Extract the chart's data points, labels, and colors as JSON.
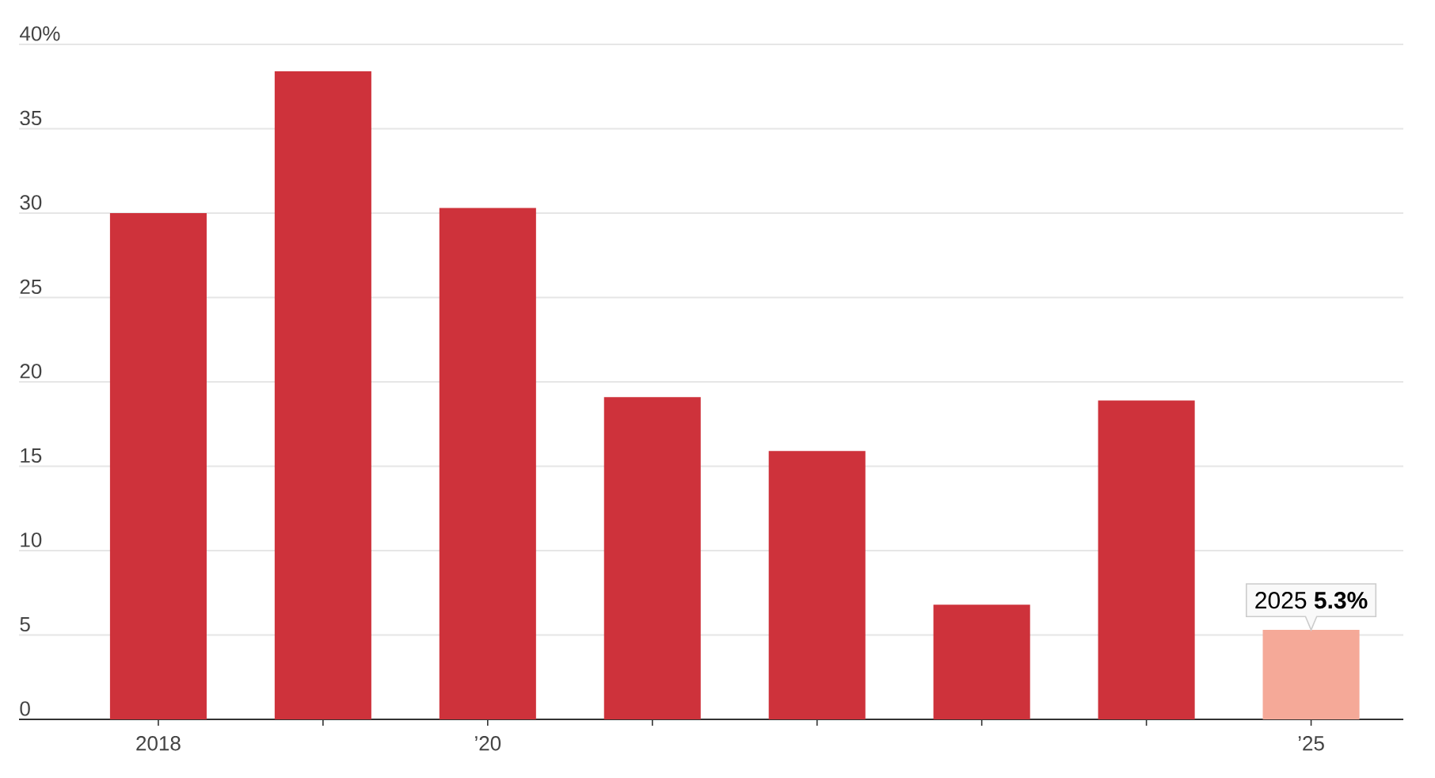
{
  "chart_data": {
    "type": "bar",
    "categories": [
      "2018",
      null,
      "’20",
      null,
      null,
      null,
      null,
      "’25"
    ],
    "values": [
      30.0,
      38.4,
      30.3,
      19.1,
      15.9,
      6.8,
      18.9,
      5.3
    ],
    "colors": [
      "#ce323b",
      "#ce323b",
      "#ce323b",
      "#ce323b",
      "#ce323b",
      "#ce323b",
      "#ce323b",
      "#f5a998"
    ],
    "ylim": [
      0,
      40
    ],
    "yticks": [
      0,
      5,
      10,
      15,
      20,
      25,
      30,
      35,
      {
        "value": 40,
        "label": "40%"
      }
    ],
    "grid": "y",
    "annotations": [
      {
        "text": "2025 **5.3%**",
        "x": "’25",
        "y": 5.3
      }
    ]
  }
}
